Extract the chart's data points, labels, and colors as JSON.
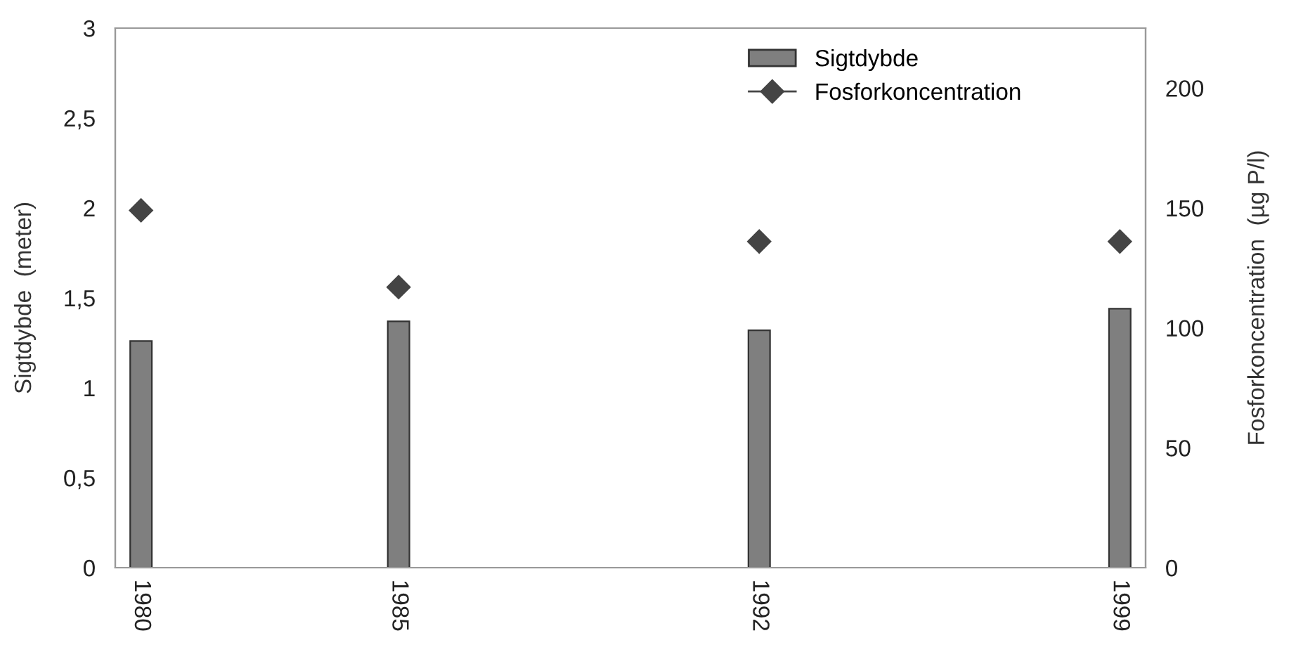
{
  "chart_data": {
    "type": "bar",
    "x": [
      1980,
      1985,
      1992,
      1999
    ],
    "series": [
      {
        "name": "Sigtdybde",
        "color": "#7f7f7f",
        "values": [
          1.26,
          1.37,
          1.32,
          1.44
        ]
      },
      {
        "name": "Fosforkoncentration",
        "type": "scatter",
        "axis": "y2",
        "marker": "diamond",
        "color": "#444444",
        "values": [
          149,
          117,
          136,
          136
        ]
      }
    ],
    "xlim": [
      1979.5,
      1999.5
    ],
    "xticks": [
      1980,
      1985,
      1992,
      1999
    ],
    "ylim": [
      0,
      3
    ],
    "yticks": [
      0,
      {
        "value": 0.5,
        "label": "0,5"
      },
      1,
      {
        "value": 1.5,
        "label": "1,5"
      },
      2,
      {
        "value": 2.5,
        "label": "2,5"
      },
      3
    ],
    "y2lim": [
      0,
      225
    ],
    "y2ticks": [
      0,
      50,
      100,
      150,
      200
    ],
    "ylabel": "Sigtdybde  (meter)",
    "y2label": "Fosforkoncentration  (µg P/l)",
    "legend": "top right",
    "grid": false
  }
}
